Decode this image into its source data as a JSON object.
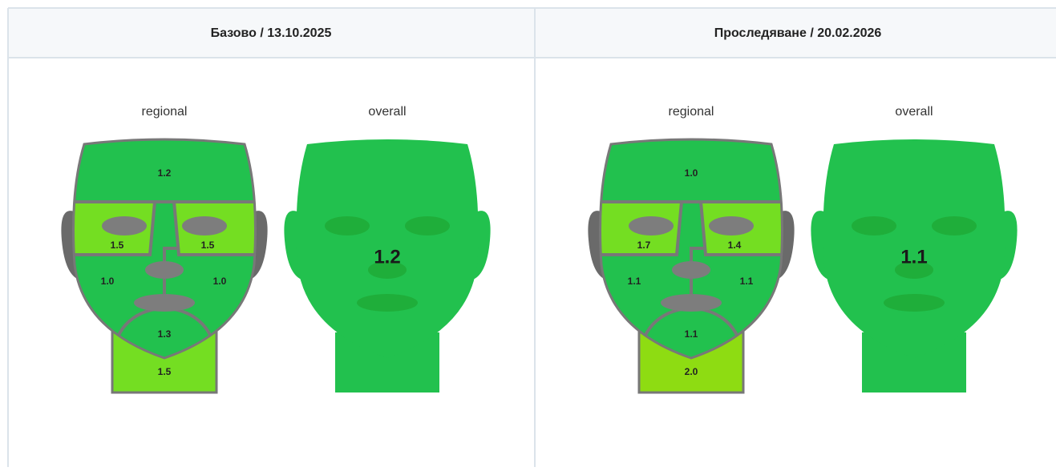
{
  "columns": [
    {
      "header": "Базово / 13.10.2025",
      "regional_label": "regional",
      "overall_label": "overall",
      "regions": {
        "forehead": "1.2",
        "left_eye": "1.5",
        "right_eye": "1.5",
        "left_cheek": "1.0",
        "right_cheek": "1.0",
        "chin": "1.3",
        "neck": "1.5"
      },
      "overall": "1.2"
    },
    {
      "header": "Проследяване / 20.02.2026",
      "regional_label": "regional",
      "overall_label": "overall",
      "regions": {
        "forehead": "1.0",
        "left_eye": "1.7",
        "right_eye": "1.4",
        "left_cheek": "1.1",
        "right_cheek": "1.1",
        "chin": "1.1",
        "neck": "2.0"
      },
      "overall": "1.1"
    }
  ]
}
